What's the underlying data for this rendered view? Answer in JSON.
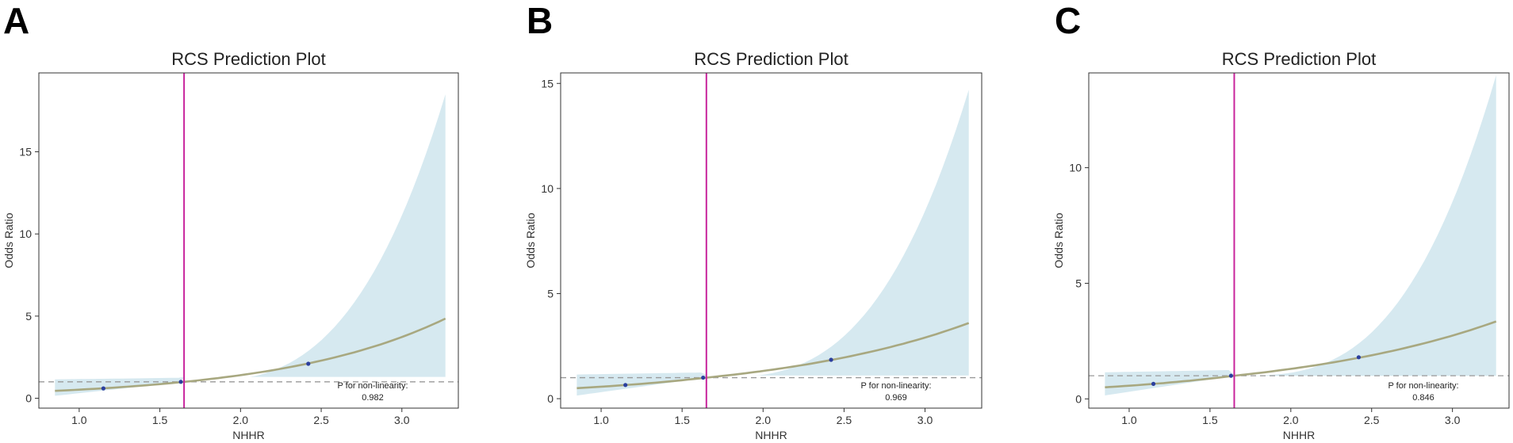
{
  "colors": {
    "ribbon": "#d6e9f0",
    "curve": "#a8a880",
    "cutoff": "#c8249c",
    "reference": "#999999",
    "points": "#2b3f9e",
    "frame": "#333333"
  },
  "chart_data": [
    {
      "panel_label": "A",
      "type": "line",
      "title": "RCS Prediction Plot",
      "xlabel": "NHHR",
      "ylabel": "Odds Ratio",
      "xlim": [
        0.75,
        3.35
      ],
      "ylim": [
        -0.6,
        19.8
      ],
      "xticks": [
        1.0,
        1.5,
        2.0,
        2.5,
        3.0
      ],
      "xtick_labels": [
        "1.0",
        "1.5",
        "2.0",
        "2.5",
        "3.0"
      ],
      "yticks": [
        0,
        5,
        10,
        15
      ],
      "ytick_labels": [
        "0",
        "5",
        "10",
        "15"
      ],
      "cutoff_x": 1.65,
      "reference_y": 1,
      "upper_y_at_xmax": 18.5,
      "upper_exponent": 3.0,
      "ribbon_floor": 1.3,
      "x_min": 0.85,
      "x_max": 3.27,
      "or_at_xmax": 4.85,
      "or_at_xmin": 0.45,
      "points": [
        {
          "x": 1.15,
          "y": 0.6
        },
        {
          "x": 1.63,
          "y": 1.0
        },
        {
          "x": 2.42,
          "y": 2.1
        }
      ],
      "pnl_label": "P for non-linearity:",
      "pnl_value": "0.982",
      "grid": false
    },
    {
      "panel_label": "B",
      "type": "line",
      "title": "RCS Prediction Plot",
      "xlabel": "NHHR",
      "ylabel": "Odds Ratio",
      "xlim": [
        0.75,
        3.35
      ],
      "ylim": [
        -0.45,
        15.5
      ],
      "xticks": [
        1.0,
        1.5,
        2.0,
        2.5,
        3.0
      ],
      "xtick_labels": [
        "1.0",
        "1.5",
        "2.0",
        "2.5",
        "3.0"
      ],
      "yticks": [
        0,
        5,
        10,
        15
      ],
      "ytick_labels": [
        "0",
        "5",
        "10",
        "15"
      ],
      "cutoff_x": 1.65,
      "reference_y": 1,
      "upper_y_at_xmax": 14.7,
      "upper_exponent": 3.0,
      "ribbon_floor": 1.1,
      "x_min": 0.85,
      "x_max": 3.27,
      "or_at_xmax": 3.6,
      "or_at_xmin": 0.5,
      "points": [
        {
          "x": 1.15,
          "y": 0.65
        },
        {
          "x": 1.63,
          "y": 1.0
        },
        {
          "x": 2.42,
          "y": 1.85
        }
      ],
      "pnl_label": "P for non-linearity:",
      "pnl_value": "0.969",
      "grid": false
    },
    {
      "panel_label": "C",
      "type": "line",
      "title": "RCS Prediction Plot",
      "xlabel": "NHHR",
      "ylabel": "Odds Ratio",
      "xlim": [
        0.75,
        3.35
      ],
      "ylim": [
        -0.4,
        14.1
      ],
      "xticks": [
        1.0,
        1.5,
        2.0,
        2.5,
        3.0
      ],
      "xtick_labels": [
        "1.0",
        "1.5",
        "2.0",
        "2.5",
        "3.0"
      ],
      "yticks": [
        0,
        5,
        10
      ],
      "ytick_labels": [
        "0",
        "5",
        "10"
      ],
      "cutoff_x": 1.65,
      "reference_y": 1,
      "upper_y_at_xmax": 14.0,
      "upper_exponent": 3.0,
      "ribbon_floor": 1.0,
      "x_min": 0.85,
      "x_max": 3.27,
      "or_at_xmax": 3.35,
      "or_at_xmin": 0.5,
      "points": [
        {
          "x": 1.15,
          "y": 0.65
        },
        {
          "x": 1.63,
          "y": 1.0
        },
        {
          "x": 2.42,
          "y": 1.8
        }
      ],
      "pnl_label": "P for non-linearity:",
      "pnl_value": "0.846",
      "grid": false
    }
  ]
}
